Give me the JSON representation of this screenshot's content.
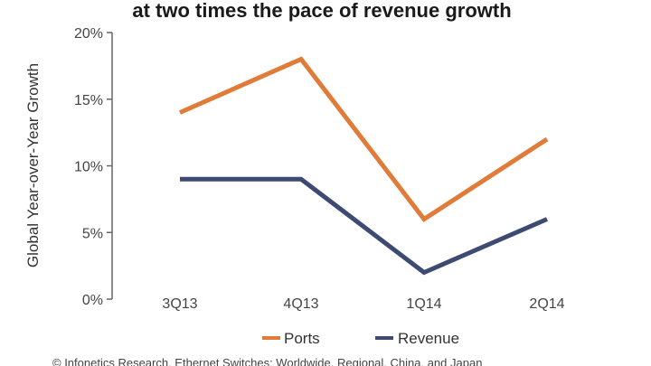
{
  "chart_data": {
    "type": "line",
    "title": "at two times the pace of revenue growth",
    "ylabel": "Global Year-over-Year Growth",
    "xlabel": "",
    "categories": [
      "3Q13",
      "4Q13",
      "1Q14",
      "2Q14"
    ],
    "ylim": [
      0,
      20
    ],
    "yticks": [
      0,
      5,
      10,
      15,
      20
    ],
    "ytick_labels": [
      "0%",
      "5%",
      "10%",
      "15%",
      "20%"
    ],
    "grid": false,
    "legend_position": "bottom",
    "series": [
      {
        "name": "Ports",
        "values": [
          14,
          18,
          6,
          12
        ],
        "color": "#e07b39"
      },
      {
        "name": "Revenue",
        "values": [
          9,
          9,
          2,
          6
        ],
        "color": "#3d4a72"
      }
    ]
  },
  "footer": "© Infonetics Research, Ethernet Switches: Worldwide, Regional, China, and Japan"
}
